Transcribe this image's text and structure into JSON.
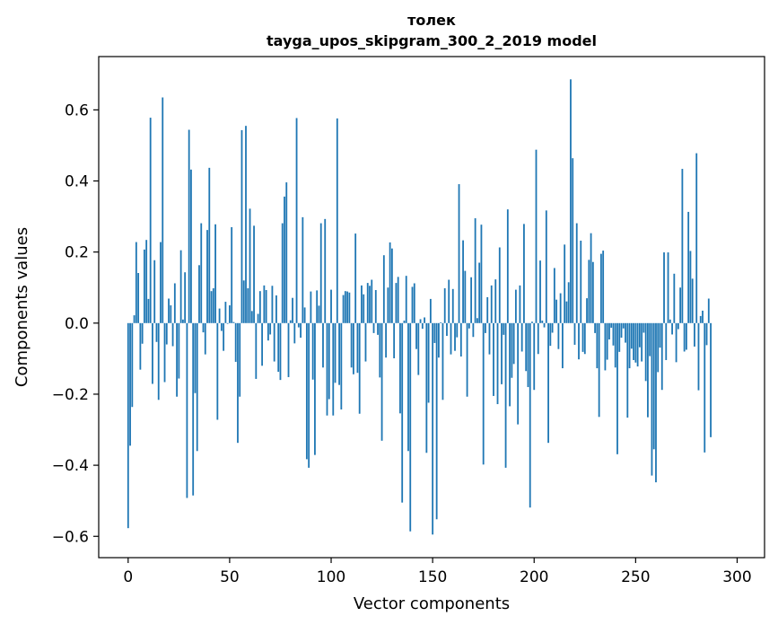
{
  "chart_data": {
    "type": "bar",
    "title_lines": [
      "толек",
      "tayga_upos_skipgram_300_2_2019 model"
    ],
    "xlabel": "Vector components",
    "ylabel": "Components values",
    "xlim": [
      -14.5,
      313.5
    ],
    "ylim": [
      -0.66,
      0.75
    ],
    "xticks": [
      0,
      50,
      100,
      150,
      200,
      250,
      300
    ],
    "xtick_labels": [
      "0",
      "50",
      "100",
      "150",
      "200",
      "250",
      "300"
    ],
    "yticks": [
      -0.6,
      -0.4,
      -0.2,
      0.0,
      0.2,
      0.4,
      0.6
    ],
    "ytick_labels": [
      "−0.6",
      "−0.4",
      "−0.2",
      "0.0",
      "0.2",
      "0.4",
      "0.6"
    ],
    "bar_color": "#1f77b4",
    "values": [
      -0.577,
      -0.345,
      -0.236,
      0.022,
      0.228,
      0.141,
      -0.131,
      -0.058,
      0.207,
      0.234,
      0.068,
      0.578,
      -0.171,
      0.177,
      -0.053,
      -0.216,
      0.228,
      0.635,
      -0.166,
      -0.06,
      0.069,
      0.05,
      -0.065,
      0.112,
      -0.207,
      -0.156,
      0.205,
      0.01,
      0.143,
      -0.492,
      0.544,
      0.432,
      -0.485,
      -0.197,
      -0.36,
      0.163,
      0.281,
      -0.026,
      -0.088,
      0.262,
      0.437,
      0.09,
      0.098,
      0.278,
      -0.272,
      0.041,
      -0.022,
      -0.078,
      0.06,
      -0.002,
      0.05,
      0.27,
      0.003,
      -0.109,
      -0.337,
      -0.207,
      0.543,
      0.12,
      0.555,
      0.098,
      0.322,
      0.034,
      0.274,
      -0.157,
      0.026,
      0.09,
      -0.12,
      0.106,
      0.093,
      -0.049,
      -0.032,
      0.105,
      -0.108,
      0.078,
      -0.137,
      -0.16,
      0.281,
      0.356,
      0.396,
      -0.152,
      0.008,
      0.071,
      -0.057,
      0.577,
      -0.012,
      -0.041,
      0.298,
      0.044,
      -0.383,
      -0.407,
      0.089,
      -0.159,
      -0.371,
      0.092,
      0.049,
      0.281,
      -0.125,
      0.293,
      -0.26,
      -0.214,
      0.094,
      -0.26,
      -0.168,
      0.576,
      -0.174,
      -0.243,
      0.079,
      0.09,
      0.089,
      0.086,
      -0.125,
      -0.144,
      0.252,
      -0.14,
      -0.255,
      0.106,
      0.081,
      -0.108,
      0.113,
      0.105,
      0.122,
      -0.028,
      0.093,
      -0.033,
      -0.153,
      -0.331,
      0.191,
      -0.097,
      0.1,
      0.227,
      0.21,
      -0.099,
      0.113,
      0.13,
      -0.254,
      -0.505,
      0.007,
      0.133,
      -0.36,
      -0.586,
      0.102,
      0.112,
      -0.073,
      -0.146,
      0.011,
      -0.016,
      0.016,
      -0.365,
      -0.224,
      0.068,
      -0.595,
      -0.056,
      -0.552,
      -0.097,
      0.002,
      -0.216,
      0.098,
      -0.036,
      0.122,
      -0.088,
      0.096,
      -0.078,
      -0.04,
      0.391,
      -0.094,
      0.233,
      0.147,
      -0.207,
      -0.015,
      0.129,
      -0.039,
      0.295,
      0.014,
      0.17,
      0.277,
      -0.398,
      -0.028,
      0.073,
      -0.088,
      0.106,
      -0.205,
      0.123,
      -0.228,
      0.213,
      -0.172,
      -0.033,
      -0.407,
      0.32,
      -0.234,
      -0.154,
      -0.115,
      0.094,
      -0.285,
      0.106,
      -0.08,
      0.279,
      -0.135,
      -0.18,
      -0.519,
      0.004,
      -0.188,
      0.488,
      -0.087,
      0.176,
      0.007,
      -0.012,
      0.317,
      -0.337,
      -0.064,
      -0.027,
      0.155,
      0.066,
      -0.073,
      0.084,
      -0.127,
      0.221,
      0.061,
      0.115,
      0.686,
      0.464,
      -0.061,
      0.281,
      -0.102,
      0.232,
      -0.081,
      -0.087,
      0.07,
      0.178,
      0.253,
      0.172,
      -0.028,
      -0.127,
      -0.264,
      0.195,
      0.204,
      -0.133,
      -0.103,
      -0.046,
      -0.013,
      -0.063,
      -0.125,
      -0.369,
      -0.081,
      -0.041,
      -0.015,
      -0.055,
      -0.266,
      -0.127,
      -0.072,
      -0.104,
      -0.111,
      -0.122,
      -0.068,
      -0.108,
      -0.027,
      -0.163,
      -0.265,
      -0.093,
      -0.429,
      -0.355,
      -0.448,
      -0.138,
      -0.069,
      -0.188,
      0.199,
      -0.104,
      0.199,
      0.01,
      -0.032,
      0.139,
      -0.11,
      -0.017,
      0.1,
      0.434,
      -0.08,
      -0.075,
      0.313,
      0.203,
      0.125,
      -0.066,
      0.478,
      -0.189,
      0.02,
      0.035,
      -0.364,
      -0.062,
      0.069,
      -0.321
    ],
    "grid": false,
    "legend": "none"
  }
}
